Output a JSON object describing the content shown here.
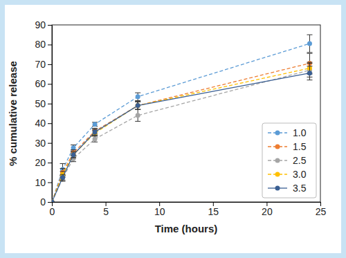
{
  "chart_data": {
    "type": "line",
    "x_label": "Time (hours)",
    "y_label": "% cumulative release",
    "x": [
      0,
      1,
      2,
      4,
      8,
      24
    ],
    "xlim": [
      0,
      25
    ],
    "xticks": [
      0,
      5,
      10,
      15,
      20,
      25
    ],
    "ylim": [
      0,
      90
    ],
    "yticks": [
      0,
      10,
      20,
      30,
      40,
      50,
      60,
      70,
      80,
      90
    ],
    "legend": "lower right",
    "marker": "circle",
    "series": [
      {
        "name": "1.0",
        "color": "#5b9bd5",
        "line_style": "dashed",
        "values": [
          0,
          16.5,
          27.5,
          39.5,
          53.5,
          80.5
        ],
        "errors": [
          0,
          3,
          1.5,
          1,
          2,
          4.5
        ]
      },
      {
        "name": "1.5",
        "color": "#ed7d31",
        "line_style": "dashed",
        "values": [
          0,
          15,
          25,
          36,
          49,
          70.5
        ],
        "errors": [
          0,
          2,
          1.5,
          1.5,
          2,
          5
        ]
      },
      {
        "name": "2.5",
        "color": "#a5a5a5",
        "line_style": "dashed",
        "values": [
          0,
          12,
          22,
          32,
          44,
          67
        ],
        "errors": [
          0,
          1.5,
          1.5,
          1.5,
          3,
          3.5
        ]
      },
      {
        "name": "3.0",
        "color": "#ffc000",
        "line_style": "dashed",
        "values": [
          0,
          14,
          24,
          35,
          49,
          68
        ],
        "errors": [
          0,
          1.5,
          1.5,
          1.5,
          2,
          3
        ]
      },
      {
        "name": "3.5",
        "color": "#3a5f93",
        "line_style": "solid",
        "values": [
          0,
          12.5,
          24,
          35.5,
          49,
          65.5
        ],
        "errors": [
          0,
          1.5,
          1.5,
          1.5,
          2,
          3.5
        ]
      }
    ]
  }
}
